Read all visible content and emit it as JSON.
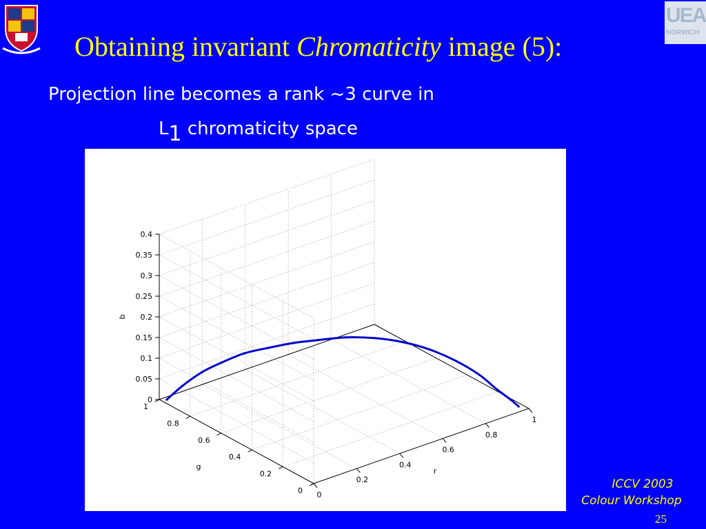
{
  "slide": {
    "title_prefix": "Obtaining invariant ",
    "title_italic": "Chromaticity",
    "title_suffix": " image (5):",
    "subtitle_line1": "Projection line becomes a rank ~3 curve in",
    "subtitle_l": "L",
    "subtitle_sub": "1",
    "subtitle_line2_rest": " chromaticity space",
    "footer_line1": "ICCV 2003",
    "footer_line2": "Colour Workshop",
    "page_number": "25",
    "logo_text_1": "UEA",
    "logo_text_2": "NORWICH"
  },
  "chart_data": {
    "type": "line3d",
    "title": "",
    "xlabel": "r",
    "ylabel": "g",
    "zlabel": "b",
    "xlim": [
      0,
      1
    ],
    "ylim": [
      0,
      1
    ],
    "zlim": [
      0,
      0.4
    ],
    "x_ticks": [
      "0",
      "0.2",
      "0.4",
      "0.6",
      "0.8",
      "1"
    ],
    "y_ticks": [
      "0",
      "0.2",
      "0.4",
      "0.6",
      "0.8",
      "1"
    ],
    "z_ticks": [
      "0",
      "0.05",
      "0.1",
      "0.15",
      "0.2",
      "0.25",
      "0.3",
      "0.35",
      "0.4"
    ],
    "grid": true,
    "series": [
      {
        "color": "#0000cc",
        "points": [
          {
            "r": 0.02,
            "g": 0.98,
            "b": 0.0
          },
          {
            "r": 0.05,
            "g": 0.92,
            "b": 0.04
          },
          {
            "r": 0.09,
            "g": 0.85,
            "b": 0.08
          },
          {
            "r": 0.13,
            "g": 0.78,
            "b": 0.11
          },
          {
            "r": 0.18,
            "g": 0.7,
            "b": 0.14
          },
          {
            "r": 0.23,
            "g": 0.62,
            "b": 0.16
          },
          {
            "r": 0.29,
            "g": 0.53,
            "b": 0.18
          },
          {
            "r": 0.35,
            "g": 0.46,
            "b": 0.19
          },
          {
            "r": 0.42,
            "g": 0.38,
            "b": 0.2
          },
          {
            "r": 0.5,
            "g": 0.3,
            "b": 0.2
          },
          {
            "r": 0.58,
            "g": 0.23,
            "b": 0.19
          },
          {
            "r": 0.66,
            "g": 0.17,
            "b": 0.17
          },
          {
            "r": 0.74,
            "g": 0.11,
            "b": 0.14
          },
          {
            "r": 0.82,
            "g": 0.07,
            "b": 0.1
          },
          {
            "r": 0.88,
            "g": 0.04,
            "b": 0.06
          },
          {
            "r": 0.93,
            "g": 0.02,
            "b": 0.03
          },
          {
            "r": 0.96,
            "g": 0.01,
            "b": 0.01
          }
        ]
      }
    ]
  }
}
